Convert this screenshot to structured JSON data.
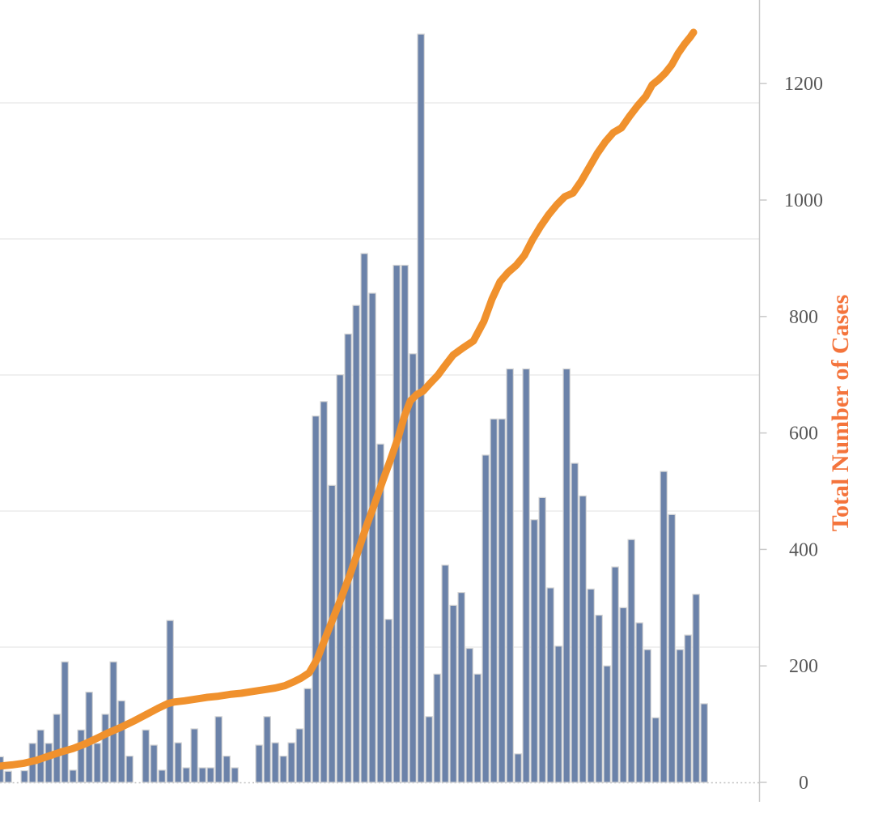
{
  "chart_data": {
    "type": "bar+line combo (epidemic curve)",
    "title": "",
    "right_axis": {
      "title": "Total Number of Cases",
      "tick_values": [
        0,
        200,
        400,
        600,
        800,
        1000,
        1200
      ],
      "tick_labels": [
        "0",
        "200",
        "400",
        "600",
        "800",
        "1000",
        "1200"
      ],
      "range": [
        0,
        1300
      ]
    },
    "left_axis_visible": false,
    "legend_visible": false,
    "grid": "horizontal light gridlines, dotted zero baseline",
    "bars_series_name": "daily-cases-bars",
    "bars_units": "right-axis equivalent units (left axis cropped out of view)",
    "bars": [
      44,
      19,
      0,
      20,
      67,
      90,
      67,
      117,
      207,
      21,
      90,
      155,
      67,
      117,
      207,
      140,
      45,
      0,
      90,
      64,
      21,
      278,
      68,
      25,
      92,
      25,
      25,
      113,
      45,
      25,
      0,
      0,
      64,
      113,
      68,
      45,
      68,
      92,
      161,
      629,
      654,
      510,
      700,
      770,
      819,
      908,
      840,
      581,
      280,
      888,
      888,
      736,
      1285,
      113,
      186,
      373,
      304,
      326,
      230,
      186,
      562,
      624,
      624,
      710,
      49,
      710,
      451,
      489,
      334,
      234,
      710,
      548,
      492,
      332,
      287,
      200,
      370,
      300,
      417,
      274,
      228,
      111,
      534,
      460,
      228,
      253,
      323,
      135
    ],
    "line_series_name": "cumulative-total-line",
    "line_points": [
      [
        0,
        28
      ],
      [
        15,
        30
      ],
      [
        30,
        33
      ],
      [
        45,
        38
      ],
      [
        60,
        45
      ],
      [
        75,
        52
      ],
      [
        90,
        58
      ],
      [
        105,
        66
      ],
      [
        120,
        76
      ],
      [
        135,
        86
      ],
      [
        150,
        95
      ],
      [
        165,
        105
      ],
      [
        180,
        116
      ],
      [
        195,
        127
      ],
      [
        207,
        135
      ],
      [
        215,
        138
      ],
      [
        228,
        140
      ],
      [
        242,
        143
      ],
      [
        256,
        146
      ],
      [
        270,
        148
      ],
      [
        284,
        151
      ],
      [
        298,
        153
      ],
      [
        312,
        156
      ],
      [
        326,
        159
      ],
      [
        340,
        162
      ],
      [
        352,
        166
      ],
      [
        362,
        172
      ],
      [
        372,
        179
      ],
      [
        382,
        188
      ],
      [
        392,
        212
      ],
      [
        402,
        248
      ],
      [
        412,
        283
      ],
      [
        422,
        318
      ],
      [
        432,
        355
      ],
      [
        442,
        395
      ],
      [
        452,
        437
      ],
      [
        462,
        475
      ],
      [
        472,
        514
      ],
      [
        482,
        552
      ],
      [
        492,
        592
      ],
      [
        500,
        630
      ],
      [
        507,
        655
      ],
      [
        515,
        666
      ],
      [
        523,
        672
      ],
      [
        532,
        686
      ],
      [
        541,
        699
      ],
      [
        550,
        716
      ],
      [
        560,
        734
      ],
      [
        572,
        746
      ],
      [
        585,
        758
      ],
      [
        598,
        792
      ],
      [
        608,
        830
      ],
      [
        618,
        860
      ],
      [
        628,
        876
      ],
      [
        638,
        888
      ],
      [
        648,
        905
      ],
      [
        658,
        932
      ],
      [
        668,
        955
      ],
      [
        678,
        975
      ],
      [
        688,
        992
      ],
      [
        698,
        1006
      ],
      [
        708,
        1012
      ],
      [
        718,
        1032
      ],
      [
        728,
        1056
      ],
      [
        738,
        1080
      ],
      [
        748,
        1100
      ],
      [
        758,
        1116
      ],
      [
        768,
        1124
      ],
      [
        778,
        1144
      ],
      [
        788,
        1162
      ],
      [
        798,
        1178
      ],
      [
        806,
        1198
      ],
      [
        814,
        1207
      ],
      [
        822,
        1218
      ],
      [
        830,
        1232
      ],
      [
        838,
        1252
      ],
      [
        846,
        1268
      ],
      [
        853,
        1280
      ],
      [
        857,
        1288
      ]
    ],
    "line_end_value": 1290,
    "max_bar_value": 1285,
    "colors": {
      "bar_fill": "#6B82A9",
      "bar_stroke": "#D6D6D6",
      "line": "#F0912D",
      "axis_title": "#F4743C",
      "tick_text": "#595959",
      "gridline": "#EBEBEB",
      "axis_line": "#C9C9C9",
      "baseline_dots": "#BFBFBF",
      "background": "#FFFFFF"
    }
  }
}
